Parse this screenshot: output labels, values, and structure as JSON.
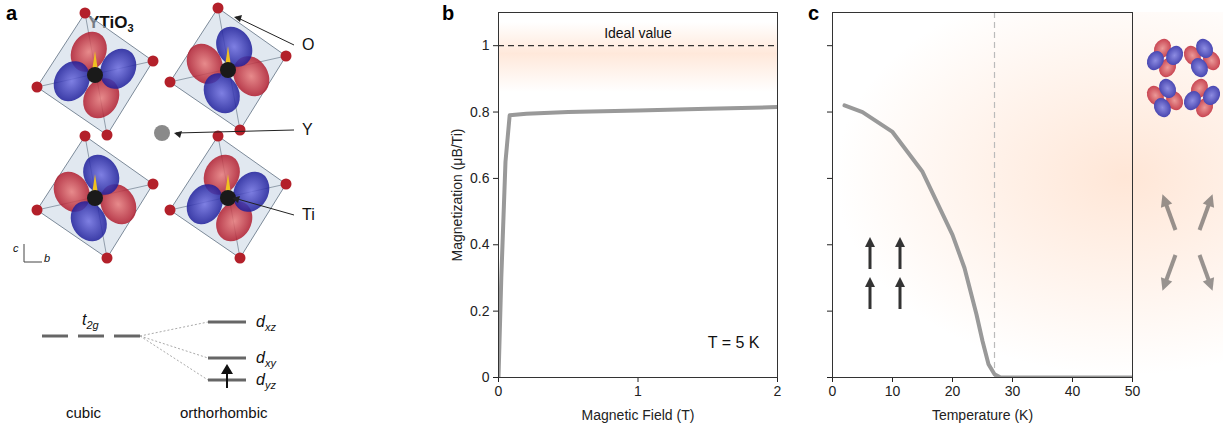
{
  "chart_data": [
    {
      "panel": "b",
      "type": "line",
      "x": [
        0,
        0.02,
        0.05,
        0.08,
        0.2,
        0.5,
        1,
        1.5,
        2
      ],
      "values": [
        0,
        0.3,
        0.65,
        0.79,
        0.795,
        0.8,
        0.805,
        0.81,
        0.815
      ],
      "color": "#999999",
      "xlabel": "Magnetic Field (T)",
      "ylabel": "Magnetization (μB/Ti)",
      "xlim": [
        0,
        2
      ],
      "ylim": [
        0,
        1.1
      ],
      "xticks": [
        0,
        1,
        2
      ],
      "yticks": [
        0,
        0.2,
        0.4,
        0.6,
        0.8,
        1
      ],
      "hline": {
        "value": 1,
        "label": "Ideal value",
        "line_style": "dashed"
      },
      "annotations": [
        "T = 5 K"
      ]
    },
    {
      "panel": "c",
      "type": "line",
      "x": [
        2,
        5,
        10,
        15,
        20,
        22,
        24,
        25,
        26,
        27,
        28,
        35,
        50
      ],
      "values": [
        0.82,
        0.8,
        0.74,
        0.62,
        0.43,
        0.33,
        0.19,
        0.11,
        0.04,
        0.01,
        0,
        0,
        0
      ],
      "color": "#999999",
      "xlabel": "Temperature (K)",
      "xlim": [
        0,
        50
      ],
      "ylim": [
        0,
        1.1
      ],
      "xticks": [
        0,
        10,
        20,
        30,
        40,
        50
      ],
      "yticks": [
        0,
        0.2,
        0.4,
        0.6,
        0.8,
        1
      ],
      "tick_labels": "x",
      "vline": {
        "value": 27,
        "line_style": "dashed"
      }
    }
  ],
  "diagram": {
    "panel": "a",
    "title": "YTiO3",
    "atom_labels": [
      "O",
      "Y",
      "Ti"
    ],
    "axes": [
      "c",
      "b"
    ],
    "levels": {
      "left": {
        "label": "t2g",
        "caption": "cubic"
      },
      "right": {
        "labels": [
          "dxz",
          "dxy",
          "dyz"
        ],
        "caption": "orthorhombic"
      }
    }
  }
}
